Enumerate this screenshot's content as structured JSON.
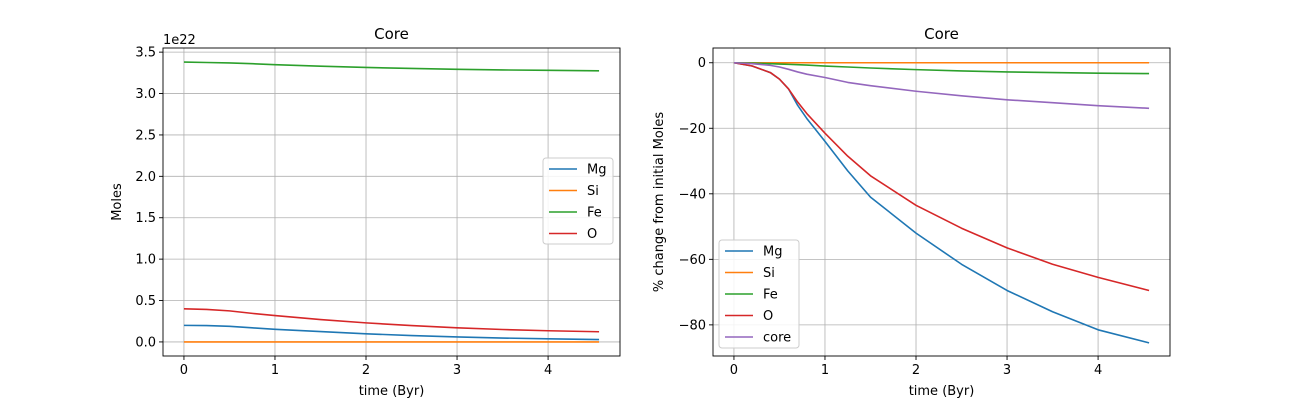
{
  "chart_data": [
    {
      "type": "line",
      "title": "Core",
      "xlabel": "time (Byr)",
      "ylabel": "Moles",
      "y_offset_text": "1e22",
      "xlim": [
        -0.23,
        4.79
      ],
      "ylim": [
        -0.17,
        3.55
      ],
      "xticks": [
        0,
        1,
        2,
        3,
        4
      ],
      "xtick_labels": [
        "0",
        "1",
        "2",
        "3",
        "4"
      ],
      "yticks": [
        0.0,
        0.5,
        1.0,
        1.5,
        2.0,
        2.5,
        3.0,
        3.5
      ],
      "ytick_labels": [
        "0.0",
        "0.5",
        "1.0",
        "1.5",
        "2.0",
        "2.5",
        "3.0",
        "3.5"
      ],
      "grid": true,
      "legend_placement": "center-right",
      "x": [
        0,
        0.25,
        0.5,
        0.75,
        1,
        1.5,
        2,
        2.5,
        3,
        3.5,
        4,
        4.56
      ],
      "series": [
        {
          "name": "Mg",
          "color": "#1f77b4",
          "values": [
            0.2,
            0.197,
            0.189,
            0.17,
            0.152,
            0.125,
            0.098,
            0.077,
            0.06,
            0.047,
            0.037,
            0.029
          ]
        },
        {
          "name": "Si",
          "color": "#ff7f0e",
          "values": [
            0.0,
            0.0,
            0.0,
            0.0,
            0.0,
            0.0,
            0.0,
            0.0,
            0.0,
            0.0,
            0.0,
            0.0
          ]
        },
        {
          "name": "Fe",
          "color": "#2ca02c",
          "values": [
            3.38,
            3.375,
            3.37,
            3.36,
            3.348,
            3.33,
            3.315,
            3.303,
            3.293,
            3.285,
            3.28,
            3.275
          ]
        },
        {
          "name": "O",
          "color": "#d62728",
          "values": [
            0.4,
            0.392,
            0.375,
            0.345,
            0.318,
            0.27,
            0.23,
            0.197,
            0.171,
            0.15,
            0.135,
            0.123
          ]
        }
      ]
    },
    {
      "type": "line",
      "title": "Core",
      "xlabel": "time (Byr)",
      "ylabel": "% change from initial Moles",
      "xlim": [
        -0.23,
        4.79
      ],
      "ylim": [
        -89.5,
        4.5
      ],
      "xticks": [
        0,
        1,
        2,
        3,
        4
      ],
      "xtick_labels": [
        "0",
        "1",
        "2",
        "3",
        "4"
      ],
      "yticks": [
        0,
        -20,
        -40,
        -60,
        -80
      ],
      "ytick_labels": [
        "0",
        "−20",
        "−40",
        "−60",
        "−80"
      ],
      "grid": true,
      "legend_placement": "lower-left",
      "x": [
        0,
        0.2,
        0.4,
        0.5,
        0.6,
        0.7,
        0.8,
        1,
        1.25,
        1.5,
        2,
        2.5,
        3,
        3.5,
        4,
        4.56
      ],
      "series": [
        {
          "name": "Mg",
          "color": "#1f77b4",
          "values": [
            0,
            -1,
            -3,
            -5,
            -8,
            -13,
            -17,
            -24,
            -33,
            -41,
            -52,
            -61.5,
            -69.5,
            -76,
            -81.5,
            -85.5
          ]
        },
        {
          "name": "Si",
          "color": "#ff7f0e",
          "values": [
            0,
            0,
            0,
            0,
            0,
            0,
            0,
            0,
            0,
            0,
            0,
            0,
            0,
            0,
            0,
            0
          ]
        },
        {
          "name": "Fe",
          "color": "#2ca02c",
          "values": [
            0,
            -0.1,
            -0.3,
            -0.4,
            -0.5,
            -0.6,
            -0.7,
            -1,
            -1.3,
            -1.6,
            -2.1,
            -2.5,
            -2.8,
            -3.0,
            -3.2,
            -3.3
          ]
        },
        {
          "name": "O",
          "color": "#d62728",
          "values": [
            0,
            -1,
            -3,
            -5,
            -8,
            -12,
            -15.5,
            -21.5,
            -28.5,
            -34.5,
            -43.5,
            -50.5,
            -56.5,
            -61.5,
            -65.5,
            -69.5
          ]
        },
        {
          "name": "core",
          "color": "#9467bd",
          "values": [
            0,
            -0.3,
            -0.8,
            -1.3,
            -2,
            -2.8,
            -3.5,
            -4.5,
            -6,
            -7,
            -8.7,
            -10.1,
            -11.3,
            -12.2,
            -13.1,
            -13.9
          ]
        }
      ]
    }
  ]
}
